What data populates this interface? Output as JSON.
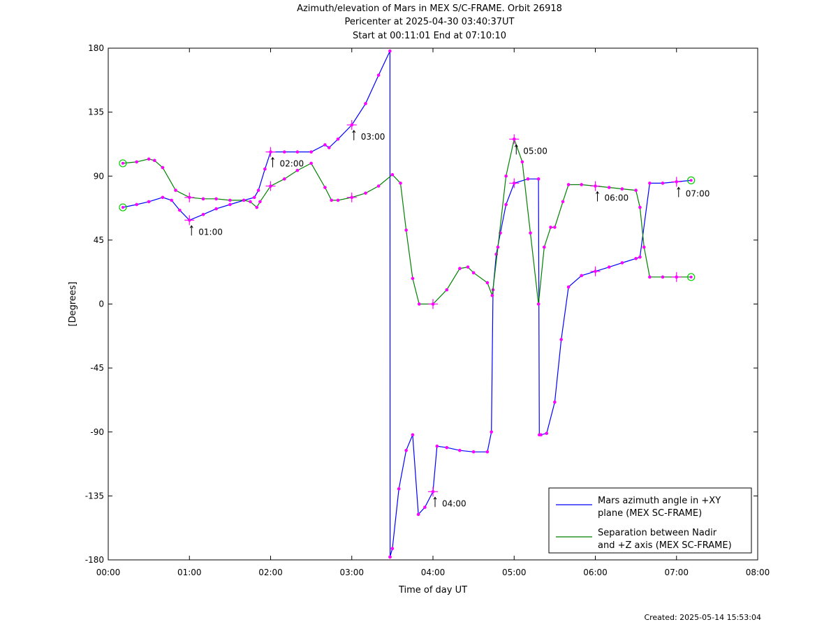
{
  "title": {
    "line1": "Azimuth/elevation of Mars in MEX S/C-FRAME.  Orbit 26918",
    "line2": "Pericenter at 2025-04-30 03:40:37UT",
    "line3": "Start at 00:11:01 End at 07:10:10"
  },
  "created": "Created: 2025-05-14 15:53:04",
  "colors": {
    "azimuth": "#0000ff",
    "separation": "#008000",
    "marker": "#ff00ff",
    "endpoint": "#00cc00"
  },
  "chart_data": {
    "type": "line",
    "xlabel": "Time of day UT",
    "ylabel": "[Degrees]",
    "xlim": [
      0,
      8
    ],
    "ylim": [
      -180,
      180
    ],
    "xticks": [
      {
        "v": 0,
        "label": "00:00"
      },
      {
        "v": 1,
        "label": "01:00"
      },
      {
        "v": 2,
        "label": "02:00"
      },
      {
        "v": 3,
        "label": "03:00"
      },
      {
        "v": 4,
        "label": "04:00"
      },
      {
        "v": 5,
        "label": "05:00"
      },
      {
        "v": 6,
        "label": "06:00"
      },
      {
        "v": 7,
        "label": "07:00"
      },
      {
        "v": 8,
        "label": "08:00"
      }
    ],
    "yticks": [
      {
        "v": 180,
        "label": "180"
      },
      {
        "v": 135,
        "label": "135"
      },
      {
        "v": 90,
        "label": "90"
      },
      {
        "v": 45,
        "label": "45"
      },
      {
        "v": 0,
        "label": "0"
      },
      {
        "v": -45,
        "label": "-45"
      },
      {
        "v": -90,
        "label": "-90"
      },
      {
        "v": -135,
        "label": "-135"
      },
      {
        "v": -180,
        "label": "-180"
      }
    ],
    "legend": {
      "placement": "bottom-right",
      "entries": [
        {
          "key": "azimuth",
          "line1": "Mars azimuth angle in +XY",
          "line2": "plane (MEX SC-FRAME)"
        },
        {
          "key": "separation",
          "line1": "Separation between Nadir",
          "line2": "and +Z axis (MEX SC-FRAME)"
        }
      ]
    },
    "series": [
      {
        "key": "azimuth",
        "name": "Mars azimuth angle in +XY plane (MEX SC-FRAME)",
        "x": [
          0.18,
          0.35,
          0.5,
          0.67,
          0.78,
          0.88,
          1.0,
          1.17,
          1.33,
          1.5,
          1.67,
          1.8,
          1.85,
          1.93,
          2.0,
          2.17,
          2.33,
          2.5,
          2.67,
          2.72,
          2.83,
          3.0,
          3.17,
          3.33,
          3.47,
          3.472,
          3.47,
          3.5,
          3.58,
          3.67,
          3.75,
          3.82,
          3.9,
          4.0,
          4.05,
          4.17,
          4.33,
          4.5,
          4.67,
          4.72,
          4.74,
          4.78,
          4.83,
          4.9,
          5.0,
          5.17,
          5.3,
          5.31,
          5.33,
          5.4,
          5.5,
          5.58,
          5.67,
          5.83,
          6.0,
          6.17,
          6.33,
          6.5,
          6.55,
          6.67,
          6.83,
          7.0,
          7.18
        ],
        "y": [
          68,
          70,
          72,
          75,
          73,
          66,
          59,
          63,
          67,
          70,
          73,
          75,
          80,
          95,
          107,
          107,
          107,
          107,
          112,
          110,
          116,
          126,
          141,
          161,
          178,
          -178,
          -178,
          -172,
          -130,
          -103,
          -92,
          -148,
          -143,
          -132,
          -100,
          -101,
          -103,
          -104,
          -104,
          -90,
          10,
          35,
          50,
          70,
          85,
          88,
          88,
          -92,
          -92,
          -91,
          -69,
          -25,
          12,
          20,
          23,
          26,
          29,
          32,
          33,
          85,
          85,
          86,
          87
        ]
      },
      {
        "key": "separation",
        "name": "Separation between Nadir and +Z axis (MEX SC-FRAME)",
        "x": [
          0.18,
          0.35,
          0.5,
          0.57,
          0.67,
          0.83,
          1.0,
          1.17,
          1.33,
          1.5,
          1.67,
          1.75,
          1.83,
          1.87,
          2.0,
          2.17,
          2.33,
          2.5,
          2.67,
          2.75,
          2.83,
          3.0,
          3.17,
          3.33,
          3.5,
          3.6,
          3.67,
          3.75,
          3.83,
          4.0,
          4.17,
          4.33,
          4.43,
          4.5,
          4.67,
          4.73,
          4.8,
          4.9,
          5.0,
          5.1,
          5.2,
          5.3,
          5.37,
          5.45,
          5.5,
          5.6,
          5.67,
          5.83,
          6.0,
          6.17,
          6.33,
          6.5,
          6.55,
          6.6,
          6.67,
          6.83,
          7.0,
          7.18
        ],
        "y": [
          99,
          100,
          102,
          101,
          96,
          80,
          75,
          74,
          74,
          73,
          73,
          72,
          68,
          72,
          83,
          88,
          94,
          99,
          82,
          73,
          73,
          75,
          78,
          83,
          91,
          85,
          52,
          18,
          0,
          0,
          10,
          25,
          26,
          22,
          15,
          6,
          40,
          90,
          116,
          100,
          50,
          0,
          40,
          54,
          54,
          72,
          84,
          84,
          83,
          82,
          81,
          80,
          68,
          40,
          19,
          19,
          19,
          19
        ]
      }
    ]
  }
}
